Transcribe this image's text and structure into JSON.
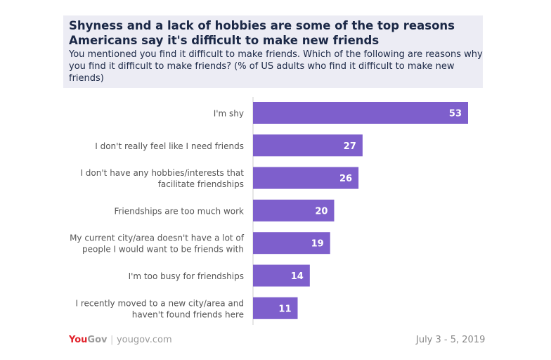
{
  "header": {
    "title": "Shyness and a lack of hobbies are some of the top reasons Americans say it's difficult to make new friends",
    "subtitle": "You mentioned you find it difficult to make friends. Which of the following are reasons why you find it difficult to make friends? (% of US adults who find it difficult to make new friends)"
  },
  "chart_data": {
    "type": "bar",
    "orientation": "horizontal",
    "categories": [
      [
        "I'm shy"
      ],
      [
        "I don't really feel like I need friends"
      ],
      [
        "I don't have any hobbies/interests that",
        "facilitate friendships"
      ],
      [
        "Friendships are too much work"
      ],
      [
        "My current city/area doesn't have a lot of",
        "people I would want to be friends with"
      ],
      [
        "I'm too busy for friendships"
      ],
      [
        "I recently moved to a new city/area and",
        "haven't found friends here"
      ]
    ],
    "values": [
      53,
      27,
      26,
      20,
      19,
      14,
      11
    ],
    "xlim": [
      0,
      55
    ],
    "bar_color": "#7e5fcc",
    "data_labels": true,
    "grid": false
  },
  "footer": {
    "logo_you": "You",
    "logo_gov": "Gov",
    "site": "yougov.com",
    "date": "July 3 - 5, 2019"
  }
}
